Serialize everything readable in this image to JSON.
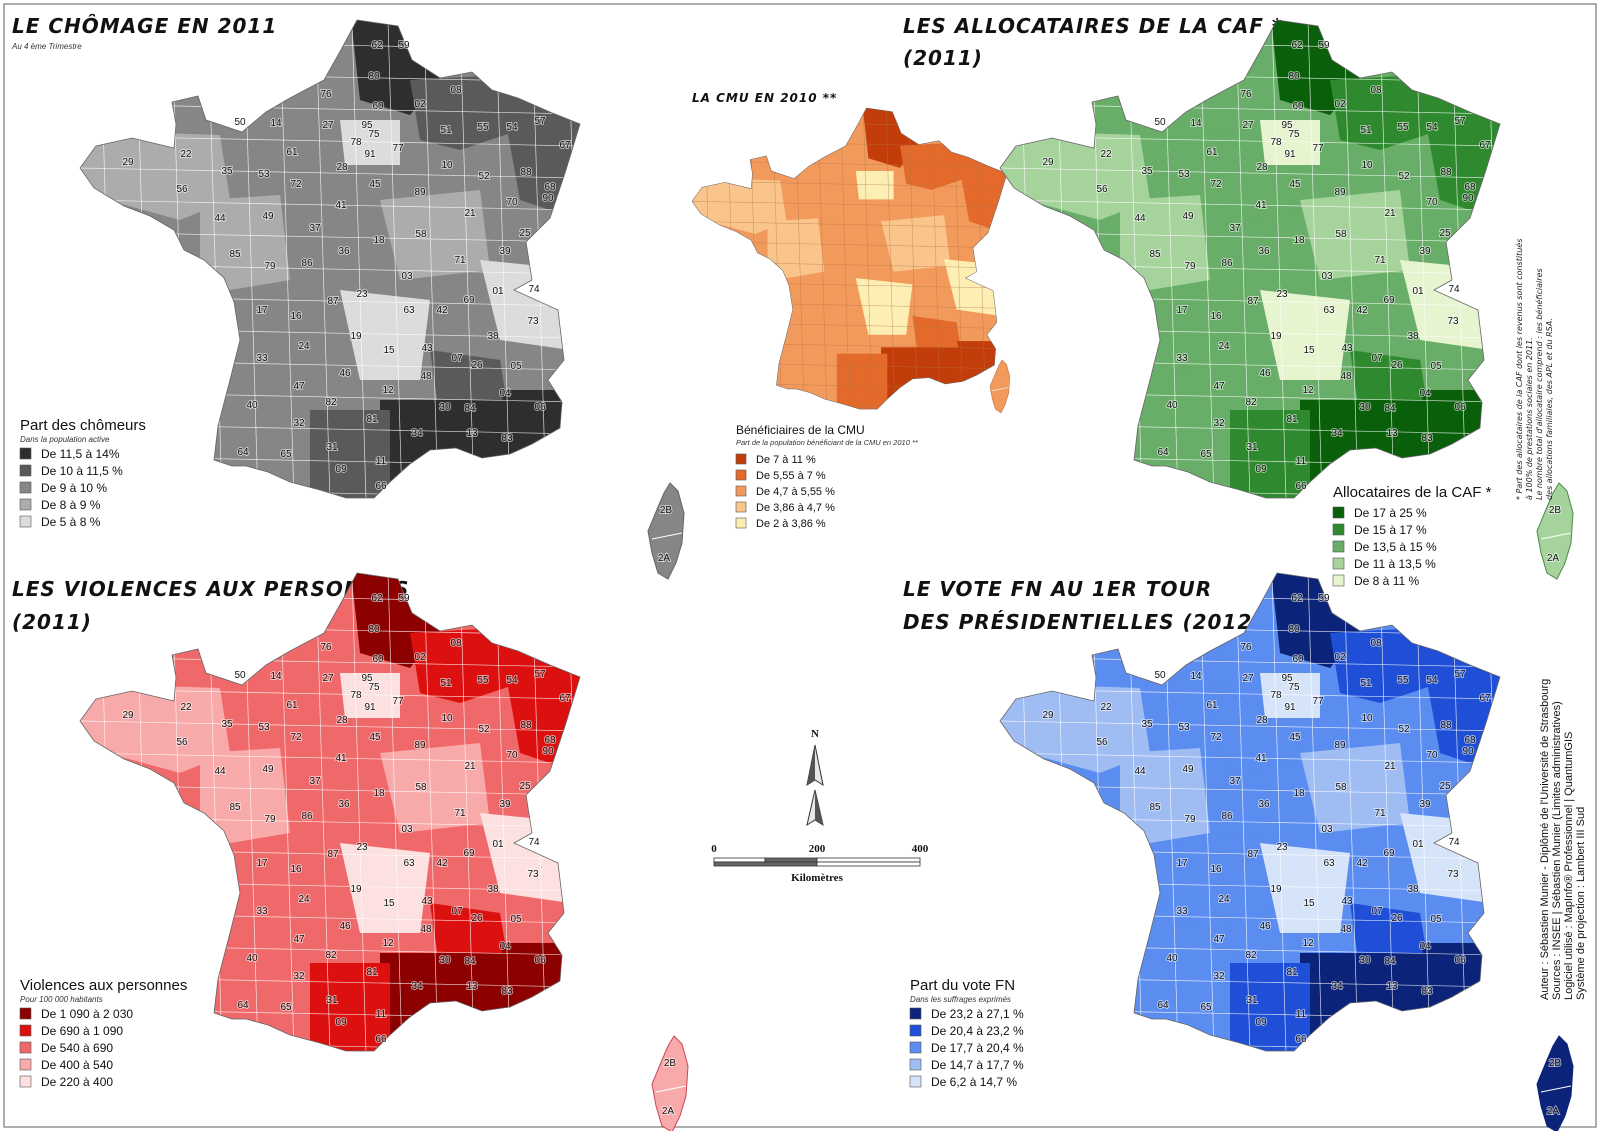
{
  "maps": {
    "chomage": {
      "title": "LE CHÔMAGE EN 2011",
      "subtitle": "Au 4 ème Trimestre",
      "legend_title": "Part des chômeurs",
      "legend_sub": "Dans la population active",
      "classes": [
        {
          "label": "De 11,5 à 14%",
          "color": "#2e2e2e"
        },
        {
          "label": "De 10 à 11,5 %",
          "color": "#5a5a5a"
        },
        {
          "label": "De 9 à 10 %",
          "color": "#868686"
        },
        {
          "label": "De 8 à 9 %",
          "color": "#acacac"
        },
        {
          "label": "De 5 à 8 %",
          "color": "#dcdcdc"
        }
      ],
      "stroke": "#ffffff"
    },
    "cmu": {
      "title": "LA CMU EN 2010 **",
      "legend_title": "Bénéficiaires de la CMU",
      "legend_sub": "Part de la population bénéficiant de la CMU en 2010 **",
      "classes": [
        {
          "label": "De 7 à 11 %",
          "color": "#c23d0a"
        },
        {
          "label": "De 5,55 à 7 %",
          "color": "#e36a2b"
        },
        {
          "label": "De 4,7 à 5,55 %",
          "color": "#f29a5b"
        },
        {
          "label": "De 3,86 à 4,7 %",
          "color": "#f9c58a"
        },
        {
          "label": "De 2 à 3,86 %",
          "color": "#fdefb3"
        }
      ],
      "stroke": "#b5764a"
    },
    "caf": {
      "title_line1": "LES ALLOCATAIRES DE LA CAF *",
      "title_line2": "(2011)",
      "legend_title": "Allocataires de la CAF *",
      "classes": [
        {
          "label": "De 17 à 25 %",
          "color": "#0a5f0a"
        },
        {
          "label": "De 15 à 17 %",
          "color": "#2f8a2f"
        },
        {
          "label": "De 13,5 à 15 %",
          "color": "#68ad68"
        },
        {
          "label": "De 11 à 13,5 %",
          "color": "#a6d29c"
        },
        {
          "label": "De 8 à 11 %",
          "color": "#e6f4cf"
        }
      ],
      "stroke": "#ffffff",
      "note": [
        "* Part des allocataires de la CAF dont les revenus sont constitués",
        "à 100% de prestations sociales en 2011.",
        "Le nombre total d'allocataire comprend : les bénéficiaires",
        "des allocations familiales, des APL et du RSA."
      ]
    },
    "violences": {
      "title_line1": "LES VIOLENCES AUX PERSONNES",
      "title_line2": "(2011)",
      "legend_title": "Violences aux personnes",
      "legend_sub": "Pour 100 000 habitants",
      "classes": [
        {
          "label": "De 1 090 à 2 030",
          "color": "#8c0000"
        },
        {
          "label": "De 690 à 1 090",
          "color": "#dd1010"
        },
        {
          "label": "De 540 à 690",
          "color": "#f0696a"
        },
        {
          "label": "De 400 à 540",
          "color": "#f8a9a9"
        },
        {
          "label": "De 220 à 400",
          "color": "#fde0e0"
        }
      ],
      "stroke": "#ffffff"
    },
    "fn": {
      "title_line1": "LE VOTE FN AU 1ER TOUR",
      "title_line2": "DES PRÉSIDENTIELLES (2012)",
      "legend_title": "Part du vote FN",
      "legend_sub": "Dans les suffrages exprimés",
      "classes": [
        {
          "label": "De 23,2 à 27,1 %",
          "color": "#0b2479"
        },
        {
          "label": "De 20,4 à 23,2 %",
          "color": "#1f4fd6"
        },
        {
          "label": "De 17,7 à 20,4 %",
          "color": "#5b8cf0"
        },
        {
          "label": "De 14,7 à 17,7 %",
          "color": "#9fbdf2"
        },
        {
          "label": "De 6,2 à 14,7 %",
          "color": "#d6e4fa"
        }
      ],
      "stroke": "#ffffff"
    }
  },
  "departements": [
    "62",
    "59",
    "80",
    "02",
    "08",
    "60",
    "76",
    "50",
    "14",
    "27",
    "95",
    "75",
    "78",
    "91",
    "77",
    "93",
    "51",
    "55",
    "54",
    "57",
    "67",
    "68",
    "88",
    "52",
    "10",
    "89",
    "45",
    "28",
    "61",
    "72",
    "53",
    "35",
    "22",
    "29",
    "56",
    "44",
    "49",
    "37",
    "41",
    "18",
    "58",
    "21",
    "70",
    "90",
    "25",
    "39",
    "71",
    "03",
    "36",
    "86",
    "79",
    "85",
    "17",
    "16",
    "87",
    "23",
    "63",
    "42",
    "69",
    "01",
    "74",
    "73",
    "38",
    "26",
    "07",
    "43",
    "15",
    "19",
    "24",
    "33",
    "47",
    "46",
    "12",
    "48",
    "30",
    "84",
    "04",
    "05",
    "06",
    "83",
    "13",
    "34",
    "81",
    "82",
    "40",
    "32",
    "31",
    "65",
    "64",
    "09",
    "11",
    "66",
    "2B",
    "2A"
  ],
  "compass": {
    "north": "N"
  },
  "scale": {
    "ticks": [
      "0",
      "200",
      "400"
    ],
    "unit": "Kilomètres"
  },
  "credits": [
    "Auteur : Sébastien Munier - Diplômé de l'Université de Strasbourg",
    "Sources : INSEE | Sébastien Munier (Limites administratives)",
    "Logiciel utilisé : MapInfo® Professionnel | QuantumGIS",
    "Système de projection : Lambert III Sud"
  ]
}
